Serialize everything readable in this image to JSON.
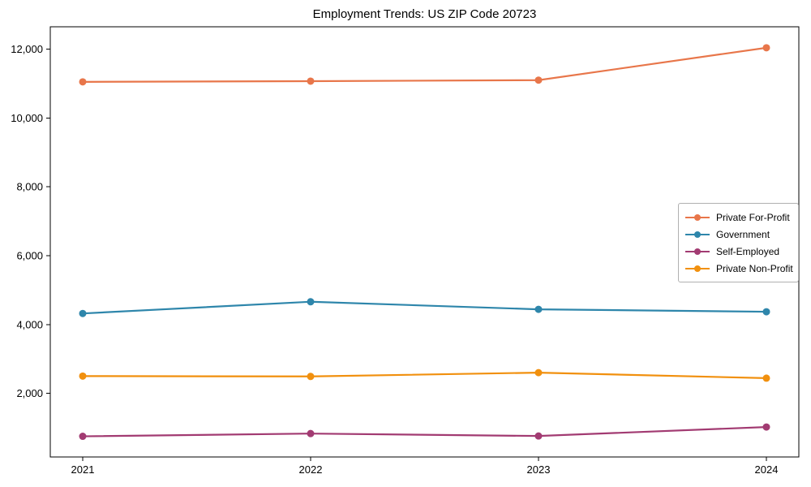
{
  "chart_data": {
    "type": "line",
    "title": "Employment Trends: US ZIP Code 20723",
    "x": [
      "2021",
      "2022",
      "2023",
      "2024"
    ],
    "series": [
      {
        "name": "Private For-Profit",
        "color": "#e8764a",
        "values": [
          11050,
          11070,
          11100,
          12040
        ]
      },
      {
        "name": "Government",
        "color": "#2e86ab",
        "values": [
          4320,
          4660,
          4440,
          4370
        ]
      },
      {
        "name": "Self-Employed",
        "color": "#a23b72",
        "values": [
          750,
          830,
          760,
          1020
        ]
      },
      {
        "name": "Private Non-Profit",
        "color": "#f1900e",
        "values": [
          2500,
          2490,
          2600,
          2440
        ]
      }
    ],
    "yticks": [
      2000,
      4000,
      6000,
      8000,
      10000,
      12000
    ],
    "ytick_labels": [
      "2,000",
      "4,000",
      "6,000",
      "8,000",
      "10,000",
      "12,000"
    ],
    "ylim": [
      150,
      12650
    ],
    "xlabel": "",
    "ylabel": "",
    "grid": false,
    "legend_position": "center-right",
    "marker": "circle",
    "frame": "full-box",
    "text_color": "#000000",
    "axis_color": "#000000"
  }
}
